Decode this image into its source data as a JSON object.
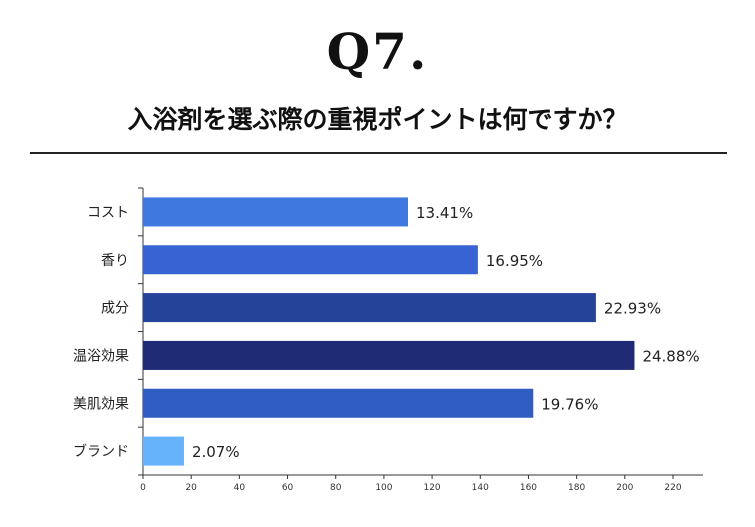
{
  "header": {
    "question_number": "Q7.",
    "question_text": "入浴剤を選ぶ際の重視ポイントは何ですか？"
  },
  "chart_data": {
    "type": "bar",
    "orientation": "horizontal",
    "categories": [
      "コスト",
      "香り",
      "成分",
      "温浴効果",
      "美肌効果",
      "ブランド"
    ],
    "values": [
      110,
      139,
      188,
      204,
      162,
      17
    ],
    "value_labels": [
      "13.41%",
      "16.95%",
      "22.93%",
      "24.88%",
      "19.76%",
      "2.07%"
    ],
    "colors": [
      "#3f79e0",
      "#3764d2",
      "#24449a",
      "#1f2b75",
      "#2f5dc4",
      "#66b2fb"
    ],
    "xlim": [
      0,
      230
    ],
    "xticks": [
      0,
      20,
      40,
      60,
      80,
      100,
      120,
      140,
      160,
      180,
      200,
      220
    ],
    "grid": false,
    "legend": "none"
  }
}
